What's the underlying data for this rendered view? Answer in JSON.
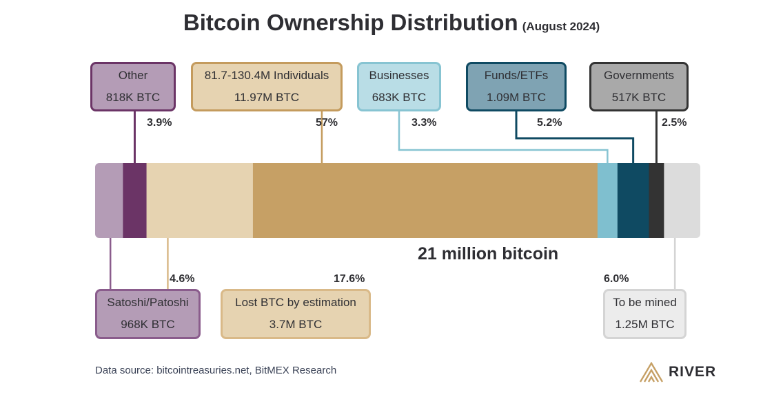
{
  "title": "Bitcoin Ownership Distribution",
  "subtitle": "(August 2024)",
  "total_label": "21 million bitcoin",
  "source": "Data source: bitcointreasuries.net, BitMEX Research",
  "brand": {
    "name": "RIVER",
    "icon": "river-chevron-logo-icon"
  },
  "chart_data": {
    "type": "bar",
    "orientation": "horizontal-stacked",
    "total": "21 million bitcoin",
    "segments": [
      {
        "key": "satoshi",
        "name": "Satoshi/Patoshi",
        "amount": "968K BTC",
        "percent": 4.6,
        "pct_label": "4.6%",
        "color": "#b49cb6",
        "border": "#8a5c8c",
        "label_pos": "below"
      },
      {
        "key": "other",
        "name": "Other",
        "amount": "818K BTC",
        "percent": 3.9,
        "pct_label": "3.9%",
        "color": "#6b3466",
        "border": "#6b3466",
        "label_pos": "above"
      },
      {
        "key": "lost",
        "name": "Lost BTC by estimation",
        "amount": "3.7M BTC",
        "percent": 17.6,
        "pct_label": "17.6%",
        "color": "#e6d3b1",
        "border": "#d9b988",
        "label_pos": "below"
      },
      {
        "key": "individuals",
        "name": "81.7-130.4M Individuals",
        "amount": "11.97M BTC",
        "percent": 57,
        "pct_label": "57%",
        "color": "#c6a065",
        "border": "#c49b5d",
        "label_pos": "above"
      },
      {
        "key": "businesses",
        "name": "Businesses",
        "amount": "683K BTC",
        "percent": 3.3,
        "pct_label": "3.3%",
        "color": "#7fbfcf",
        "border": "#87c4d2",
        "label_pos": "above"
      },
      {
        "key": "funds",
        "name": "Funds/ETFs",
        "amount": "1.09M BTC",
        "percent": 5.2,
        "pct_label": "5.2%",
        "color": "#0f4a62",
        "border": "#0f4a62",
        "label_pos": "above"
      },
      {
        "key": "governments",
        "name": "Governments",
        "amount": "517K BTC",
        "percent": 2.5,
        "pct_label": "2.5%",
        "color": "#333333",
        "border": "#333333",
        "label_pos": "above"
      },
      {
        "key": "to_be_mined",
        "name": "To be mined",
        "amount": "1.25M BTC",
        "percent": 6.0,
        "pct_label": "6.0%",
        "color": "#dcdcdc",
        "border": "#d4d4d4",
        "label_pos": "below"
      }
    ]
  }
}
